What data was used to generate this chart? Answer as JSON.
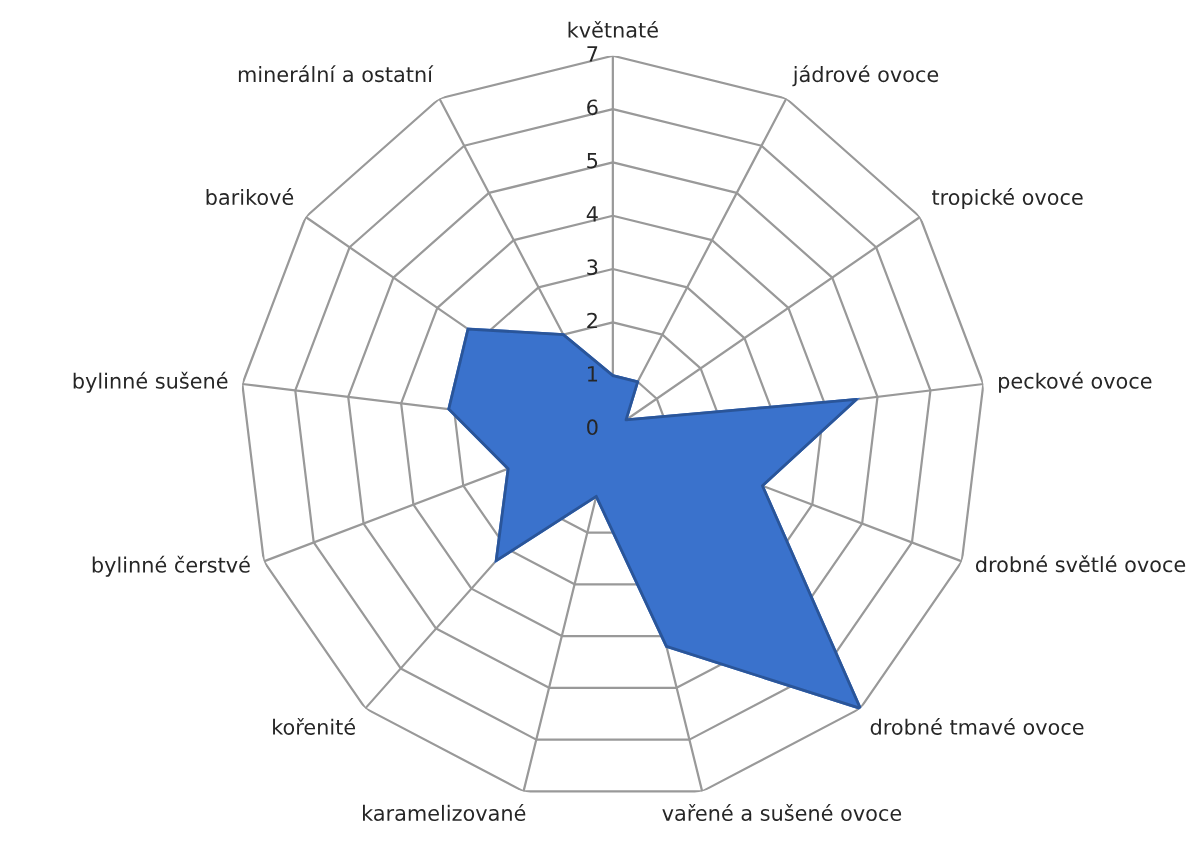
{
  "chart_data": {
    "type": "radar",
    "categories": [
      "květnaté",
      "jádrové ovoce",
      "tropické ovoce",
      "peckové ovoce",
      "drobné světlé ovoce",
      "drobné tmavé ovoce",
      "vařené a sušené ovoce",
      "karamelizované",
      "kořenité",
      "bylinné čerstvé",
      "bylinné sušené",
      "barikové",
      "minerální a ostatní"
    ],
    "series": [
      {
        "color": "#3a72cc",
        "values": [
          1,
          1,
          0.3,
          4.6,
          3,
          7,
          4.2,
          1.3,
          3.3,
          2.1,
          3.1,
          3.3,
          2
        ]
      }
    ],
    "ylim": [
      0,
      7
    ],
    "yticks": [
      0,
      1,
      2,
      3,
      4,
      5,
      6,
      7
    ],
    "grid": true,
    "legend": false
  }
}
